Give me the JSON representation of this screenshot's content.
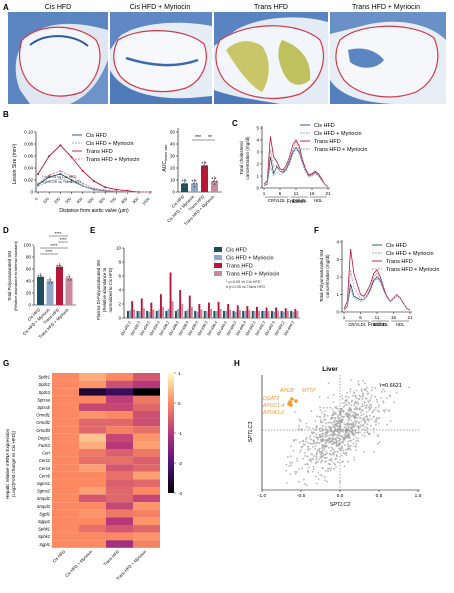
{
  "panel_labels": {
    "A": "A",
    "B": "B",
    "C": "C",
    "D": "D",
    "E": "E",
    "F": "F",
    "G": "G",
    "H": "H"
  },
  "colors": {
    "cis_hfd": "#1f4e5f",
    "cis_myr": "#8fa8c8",
    "trans_hfd": "#b8173a",
    "trans_myr": "#c98aa0",
    "orange": "#f39a2c",
    "scatter": "#a6a6a6"
  },
  "panelA": {
    "titles": [
      "Cis HFD",
      "Cis HFD + Myriocin",
      "Trans HFD",
      "Trans HFD + Myriocin"
    ]
  },
  "legend": [
    "Cis HFD",
    "Cis HFD + Myriocin",
    "Trans HFD",
    "Trans HFD + Myriocin"
  ],
  "panelB": {
    "line": {
      "ylabel": "Lesion Size (mm²)",
      "xlabel": "Distance from aortic valve (μm)",
      "ylim": [
        0,
        0.1
      ],
      "yticks": [
        "0",
        "0.02",
        "0.04",
        "0.06",
        "0.08",
        "0.10"
      ],
      "xticks": [
        "0",
        "100",
        "200",
        "300",
        "400",
        "500",
        "600",
        "700",
        "800",
        "900",
        "1000"
      ],
      "note1": "* p<0.05 vs Cis HFD",
      "note2": "# p<0.05 vs Trans HFD"
    },
    "bar": {
      "ylabel": "AUC",
      "ylabel_sub": "lesion size",
      "ylim": [
        0,
        50
      ],
      "yticks": [
        "0",
        "10",
        "20",
        "30",
        "40",
        "50"
      ],
      "categories": [
        "Cis HFD",
        "Cis HFD + Myriocin",
        "Trans HFD",
        "Trans HFD + Myriocin"
      ],
      "sig1": "***",
      "sig2": "**"
    }
  },
  "panelC": {
    "ylabel1": "Total cholesterol",
    "ylabel2": "concentration (mg/dl)",
    "xlabel": "Fraction",
    "yticks": [
      "0",
      "1",
      "2",
      "3",
      "4",
      "5"
    ],
    "xticks": [
      "1",
      "6",
      "11",
      "16",
      "21"
    ],
    "regions": [
      "CR/VLDL",
      "IDL/LDL",
      "HDL"
    ]
  },
  "panelD": {
    "ylabel1": "Total Polyunsaturated SM",
    "ylabel2": "(Relative abundance to internal standard)",
    "yticks": [
      "0",
      "20",
      "40",
      "60",
      "80",
      "100"
    ],
    "categories": [
      "Cis HFD",
      "Cis HFD + Myriocin",
      "Trans HFD",
      "Trans HFD + Myriocin"
    ],
    "sig": [
      "****",
      "****",
      "****",
      "****"
    ]
  },
  "panelE": {
    "ylabel1": "Plasma Di-Polyunsaturated SM",
    "ylabel2": "(Relative abundance to",
    "ylabel3": "normalized to Cis HFD)",
    "yticks": [
      "0",
      "2",
      "4",
      "6",
      "8",
      "10"
    ],
    "categories": [
      "SM d32:2",
      "SM d32:3",
      "SM d34:2",
      "SM d34:3",
      "SM d36:2",
      "SM d36:3",
      "SM d36:4",
      "SM d38:2",
      "SM d38:3",
      "SM d38:4",
      "SM d40:2",
      "SM d40:3",
      "SM d40:4",
      "SM d42:2",
      "SM d42:3",
      "SM d42:4",
      "SM d44:2",
      "SM d44:3"
    ],
    "note1": "* p<0.05 vs Cis HFD",
    "note2": "# p<0.05 vs Trans HFD"
  },
  "panelF": {
    "ylabel1": "Total Polyunsaturated SM",
    "ylabel2": "concentration (mg/dl)",
    "xlabel": "Fraction",
    "yticks": [
      "0",
      "1",
      "2",
      "3",
      "4"
    ],
    "xticks": [
      "1",
      "6",
      "11",
      "16",
      "21"
    ],
    "regions": [
      "CR/VLDL",
      "IDL/LDL",
      "HDL"
    ]
  },
  "panelG": {
    "ylabel1": "Hepatic relative mRNA Expression",
    "ylabel2": "(Log2(Fold change vs Cis HFD))",
    "genes": [
      "Sptlc1",
      "Sptlc2",
      "Sptlc3",
      "Sptssa",
      "Sptssb",
      "Ormdl1",
      "Ormdl2",
      "Ormdl3",
      "Degs1",
      "Fads3",
      "Cert",
      "Cers2",
      "Cers4",
      "Cers6",
      "Sgms1",
      "Sgms2",
      "Smpd2",
      "Smpd3",
      "Sgpl1",
      "Sgpp2",
      "Sphk1",
      "Sphk2",
      "Sgpl1"
    ],
    "columns": [
      "Cis HFD",
      "Cis HFD + Myriocin",
      "Trans HFD",
      "Trans HFD + Myriocin"
    ],
    "values": [
      [
        0.0,
        0.3,
        0.0,
        -0.6
      ],
      [
        0.0,
        0.1,
        -0.7,
        -1.0
      ],
      [
        0.0,
        -2.6,
        -2.3,
        -3.0
      ],
      [
        0.0,
        0.0,
        -0.9,
        -0.2
      ],
      [
        0.0,
        -0.8,
        -0.8,
        -0.4
      ],
      [
        0.0,
        0.1,
        0.0,
        -0.7
      ],
      [
        0.0,
        -0.4,
        -0.4,
        -0.7
      ],
      [
        0.0,
        -0.4,
        -0.1,
        -0.3
      ],
      [
        0.0,
        0.5,
        -0.8,
        0.1
      ],
      [
        0.0,
        0.3,
        -1.0,
        0.2
      ],
      [
        0.0,
        -0.2,
        -0.5,
        -0.2
      ],
      [
        0.0,
        -0.3,
        -0.3,
        -0.5
      ],
      [
        0.0,
        0.2,
        -0.6,
        -0.4
      ],
      [
        0.0,
        0.0,
        -0.3,
        0.2
      ],
      [
        0.0,
        0.0,
        -0.5,
        -0.4
      ],
      [
        0.0,
        0.2,
        -0.4,
        0.0
      ],
      [
        0.0,
        -0.6,
        -0.4,
        -0.8
      ],
      [
        0.0,
        0.0,
        -0.8,
        0.1
      ],
      [
        0.0,
        0.1,
        -0.2,
        -0.1
      ],
      [
        0.0,
        0.0,
        -1.0,
        0.1
      ],
      [
        0.0,
        -0.3,
        -0.6,
        -0.4
      ],
      [
        0.0,
        0.0,
        0.0,
        0.1
      ],
      [
        0.0,
        0.0,
        -1.2,
        -0.1
      ]
    ],
    "scale_ticks": [
      "1",
      "0",
      "-1",
      "-2",
      "-3"
    ]
  },
  "panelH": {
    "title": "Liver",
    "r_label": "r=0.6621",
    "xlabel": "SPTLC2",
    "ylabel": "SPTLC3",
    "xticks": [
      "-1.0",
      "-0.5",
      "0.0",
      "0.5",
      "1.0"
    ],
    "genes": [
      "APOB",
      "MTTP",
      "DGAT2",
      "APOC1-4",
      "APOA1-2"
    ]
  }
}
